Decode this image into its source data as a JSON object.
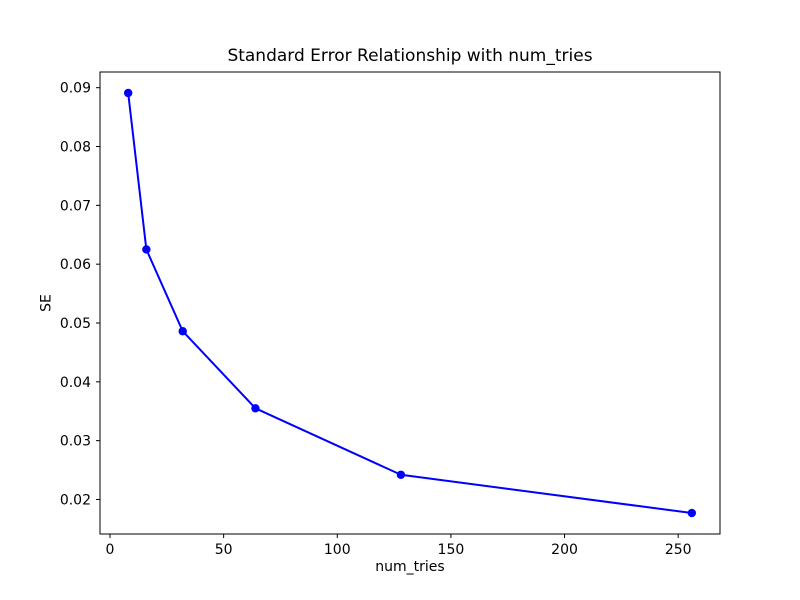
{
  "chart_data": {
    "type": "line",
    "title": "Standard Error Relationship with num_tries",
    "xlabel": "num_tries",
    "ylabel": "SE",
    "x": [
      8,
      16,
      32,
      64,
      128,
      256
    ],
    "y": [
      0.0891,
      0.0625,
      0.0486,
      0.0355,
      0.0242,
      0.0177
    ],
    "xticks": [
      0,
      50,
      100,
      150,
      200,
      250
    ],
    "xtick_labels": [
      "0",
      "50",
      "100",
      "150",
      "200",
      "250"
    ],
    "ytick_labels": [
      "0.02",
      "0.03",
      "0.04",
      "0.05",
      "0.06",
      "0.07",
      "0.08",
      "0.09"
    ],
    "xlim": [
      -4.4,
      268.4
    ],
    "ylim": [
      0.014133,
      0.092667
    ],
    "grid": false,
    "legend_position": "none",
    "line_color": "#0000ff",
    "marker": "circle",
    "axis_color": "#000000",
    "background_color": "#ffffff"
  }
}
